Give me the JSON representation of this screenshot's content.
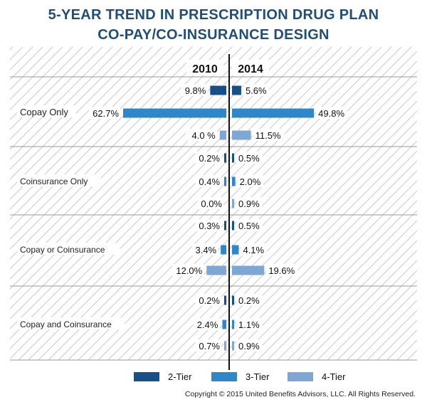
{
  "title_line1": "5-YEAR TREND IN PRESCRIPTION DRUG PLAN",
  "title_line2": "CO-PAY/CO-INSURANCE DESIGN",
  "copyright": "Copyright © 2015 United Benefits Advisors, LLC. All Rights Reserved.",
  "colors": {
    "2-Tier": "#174f86",
    "3-Tier": "#2f87c8",
    "4-Tier": "#7ea7d3",
    "title": "#1f4e79"
  },
  "chart_data": {
    "type": "bar",
    "orientation": "horizontal-butterfly",
    "left_header": "2010",
    "right_header": "2014",
    "groups": [
      "Copay Only",
      "Coinsurance Only",
      "Copay or Coinsurance",
      "Copay and Coinsurance"
    ],
    "legend": [
      "2-Tier",
      "3-Tier",
      "4-Tier"
    ],
    "legend_placement": "bottom",
    "series": [
      {
        "name": "2-Tier",
        "y2010": [
          9.8,
          0.2,
          0.3,
          0.2
        ],
        "y2014": [
          5.6,
          0.5,
          0.5,
          0.2
        ],
        "labels2010": [
          "9.8%",
          "0.2%",
          "0.3%",
          "0.2%"
        ],
        "labels2014": [
          "5.6%",
          "0.5%",
          "0.5%",
          "0.2%"
        ]
      },
      {
        "name": "3-Tier",
        "y2010": [
          62.7,
          0.4,
          3.4,
          2.4
        ],
        "y2014": [
          49.8,
          2.0,
          4.1,
          1.1
        ],
        "labels2010": [
          "62.7%",
          "0.4%",
          "3.4%",
          "2.4%"
        ],
        "labels2014": [
          "49.8%",
          "2.0%",
          "4.1%",
          "1.1%"
        ]
      },
      {
        "name": "4-Tier",
        "y2010": [
          4.0,
          0.0,
          12.0,
          0.7
        ],
        "y2014": [
          11.5,
          0.9,
          19.6,
          0.9
        ],
        "labels2010": [
          "4.0 %",
          "0.0%",
          "12.0%",
          "0.7%"
        ],
        "labels2014": [
          "11.5%",
          "0.9%",
          "19.6%",
          "0.9%"
        ]
      }
    ]
  }
}
